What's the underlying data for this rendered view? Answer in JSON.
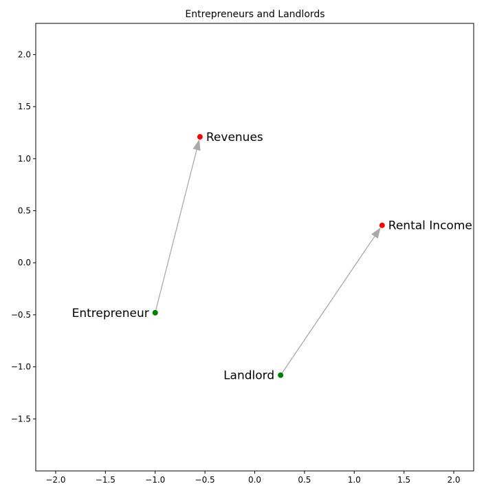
{
  "chart_data": {
    "type": "scatter",
    "title": "Entrepreneurs and Landlords",
    "xlabel": "",
    "ylabel": "",
    "xlim": [
      -2.2,
      2.2
    ],
    "ylim": [
      -2.0,
      2.3
    ],
    "xticks": [
      -2.0,
      -1.5,
      -1.0,
      -0.5,
      0.0,
      0.5,
      1.0,
      1.5,
      2.0
    ],
    "xtick_labels": [
      "−2.0",
      "−1.5",
      "−1.0",
      "−0.5",
      "0.0",
      "0.5",
      "1.0",
      "1.5",
      "2.0"
    ],
    "yticks": [
      -1.5,
      -1.0,
      -0.5,
      0.0,
      0.5,
      1.0,
      1.5,
      2.0
    ],
    "ytick_labels": [
      "−1.5",
      "−1.0",
      "−0.5",
      "0.0",
      "0.5",
      "1.0",
      "1.5",
      "2.0"
    ],
    "grid": false,
    "points": [
      {
        "label": "Entrepreneur",
        "x": -1.0,
        "y": -0.48,
        "color": "#008000",
        "label_side": "left"
      },
      {
        "label": "Revenues",
        "x": -0.55,
        "y": 1.21,
        "color": "#ff0000",
        "label_side": "right"
      },
      {
        "label": "Landlord",
        "x": 0.26,
        "y": -1.08,
        "color": "#008000",
        "label_side": "left"
      },
      {
        "label": "Rental Income",
        "x": 1.28,
        "y": 0.36,
        "color": "#ff0000",
        "label_side": "right"
      }
    ],
    "arrows": [
      {
        "from": 0,
        "to": 1,
        "color": "#aaaaaa"
      },
      {
        "from": 2,
        "to": 3,
        "color": "#aaaaaa"
      }
    ]
  }
}
